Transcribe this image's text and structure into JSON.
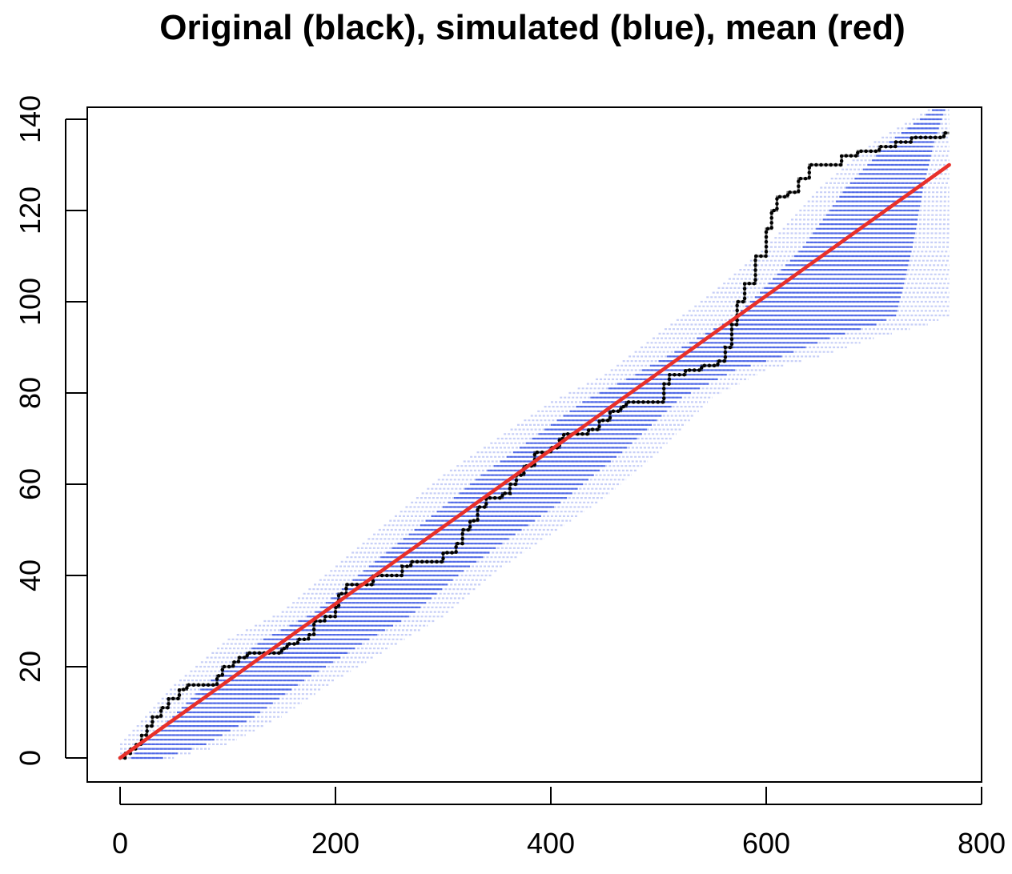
{
  "chart_data": {
    "type": "line",
    "title": "Original (black), simulated (blue), mean (red)",
    "xlabel": "",
    "ylabel": "",
    "xlim": [
      0,
      800
    ],
    "ylim": [
      0,
      140
    ],
    "x_ticks": [
      0,
      200,
      400,
      600,
      800
    ],
    "y_ticks": [
      0,
      20,
      40,
      60,
      80,
      100,
      120,
      140
    ],
    "grid": false,
    "legend": "none",
    "colors": {
      "original": "#000000",
      "simulated": "#1f3fe0",
      "mean": "#e8302a"
    },
    "series": [
      {
        "role": "original",
        "style": "step",
        "points": [
          [
            0,
            0
          ],
          [
            5,
            1
          ],
          [
            10,
            2
          ],
          [
            15,
            3
          ],
          [
            20,
            5
          ],
          [
            25,
            7
          ],
          [
            30,
            9
          ],
          [
            38,
            11
          ],
          [
            45,
            13
          ],
          [
            55,
            15
          ],
          [
            62,
            16
          ],
          [
            78,
            16
          ],
          [
            90,
            18
          ],
          [
            95,
            20
          ],
          [
            105,
            21
          ],
          [
            110,
            22
          ],
          [
            118,
            23
          ],
          [
            140,
            23
          ],
          [
            150,
            24
          ],
          [
            155,
            25
          ],
          [
            165,
            26
          ],
          [
            175,
            27
          ],
          [
            180,
            30
          ],
          [
            190,
            31
          ],
          [
            200,
            33
          ],
          [
            203,
            36
          ],
          [
            210,
            38
          ],
          [
            230,
            38
          ],
          [
            235,
            40
          ],
          [
            250,
            40
          ],
          [
            262,
            42
          ],
          [
            270,
            43
          ],
          [
            292,
            43
          ],
          [
            300,
            45
          ],
          [
            312,
            47
          ],
          [
            318,
            50
          ],
          [
            325,
            52
          ],
          [
            332,
            55
          ],
          [
            340,
            57
          ],
          [
            355,
            58
          ],
          [
            362,
            60
          ],
          [
            368,
            62
          ],
          [
            375,
            64
          ],
          [
            385,
            67
          ],
          [
            395,
            67
          ],
          [
            400,
            68
          ],
          [
            408,
            70
          ],
          [
            412,
            71
          ],
          [
            420,
            71
          ],
          [
            435,
            72
          ],
          [
            445,
            74
          ],
          [
            455,
            76
          ],
          [
            465,
            77
          ],
          [
            470,
            78
          ],
          [
            500,
            78
          ],
          [
            505,
            82
          ],
          [
            510,
            84
          ],
          [
            525,
            85
          ],
          [
            540,
            86
          ],
          [
            555,
            87
          ],
          [
            562,
            90
          ],
          [
            568,
            95
          ],
          [
            573,
            100
          ],
          [
            580,
            104
          ],
          [
            590,
            110
          ],
          [
            600,
            116
          ],
          [
            605,
            120
          ],
          [
            610,
            123
          ],
          [
            620,
            124
          ],
          [
            630,
            127
          ],
          [
            640,
            130
          ],
          [
            660,
            130
          ],
          [
            670,
            132
          ],
          [
            685,
            133
          ],
          [
            700,
            133
          ],
          [
            705,
            134
          ],
          [
            720,
            135
          ],
          [
            735,
            136
          ],
          [
            760,
            136
          ],
          [
            765,
            137
          ],
          [
            770,
            137
          ]
        ]
      },
      {
        "role": "mean",
        "style": "line",
        "points": [
          [
            0,
            0
          ],
          [
            770,
            130
          ]
        ]
      }
    ],
    "simulated_band": {
      "description": "envelope of simulated step paths",
      "x": [
        0,
        50,
        100,
        150,
        200,
        250,
        300,
        350,
        400,
        450,
        500,
        550,
        600,
        650,
        700,
        750,
        770
      ],
      "lower": [
        0,
        1,
        4,
        10,
        18,
        25,
        32,
        42,
        50,
        58,
        68,
        80,
        86,
        89,
        93,
        96,
        98
      ],
      "upper": [
        3,
        16,
        26,
        32,
        42,
        52,
        62,
        70,
        78,
        84,
        93,
        102,
        112,
        125,
        135,
        142,
        143
      ]
    }
  }
}
